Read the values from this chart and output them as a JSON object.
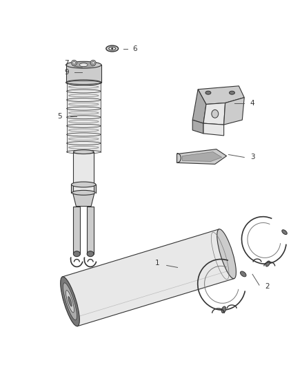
{
  "background_color": "#ffffff",
  "fig_width": 4.38,
  "fig_height": 5.33,
  "dpi": 100,
  "line_color": "#555555",
  "dark_color": "#333333",
  "mid_color": "#777777",
  "light_color": "#aaaaaa",
  "highlight_color": "#cccccc",
  "very_light": "#e8e8e8",
  "text_color": "#333333",
  "text_fontsize": 7.5
}
